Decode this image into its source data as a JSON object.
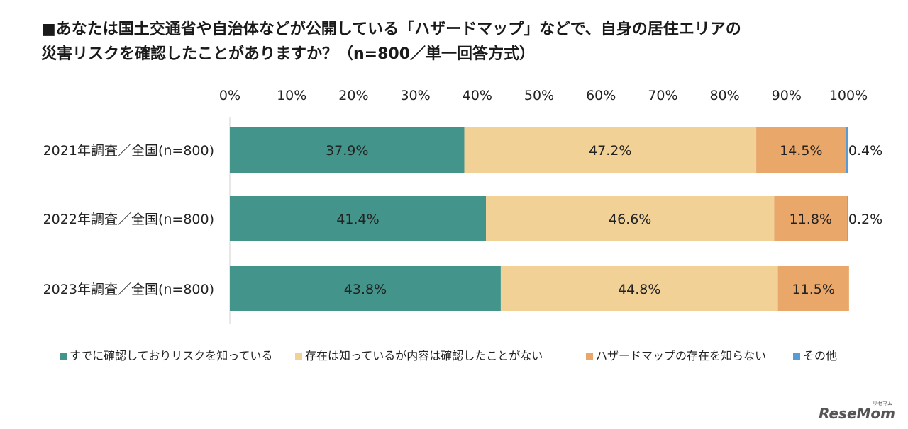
{
  "title_lines": [
    "■あなたは国土交通省や自治体などが公開している「ハザードマップ」などで、自身の居住エリアの",
    "災害リスクを確認したことがありますか？（n=800／単一回答方式）"
  ],
  "logo": {
    "text": "ReseMom",
    "ruby": "リセマム"
  },
  "colors": {
    "checked": "#43948a",
    "aware": "#f2d197",
    "unaware": "#e9a76a",
    "other": "#5b9bd5"
  },
  "chart_data": {
    "type": "bar",
    "orientation": "horizontal",
    "stacked": "percent",
    "categories": [
      "2021年調査／全国(n=800)",
      "2022年調査／全国(n=800)",
      "2023年調査／全国(n=800)"
    ],
    "series": [
      {
        "name": "すでに確認しておりリスクを知っている",
        "values": [
          37.9,
          41.4,
          43.8
        ],
        "labels": [
          "37.9%",
          "41.4%",
          "43.8%"
        ]
      },
      {
        "name": "存在は知っているが内容は確認したことがない",
        "values": [
          47.2,
          46.6,
          44.8
        ],
        "labels": [
          "47.2%",
          "46.6%",
          "44.8%"
        ]
      },
      {
        "name": "ハザードマップの存在を知らない",
        "values": [
          14.5,
          11.8,
          11.5
        ],
        "labels": [
          "14.5%",
          "11.8%",
          "11.5%"
        ]
      },
      {
        "name": "その他",
        "values": [
          0.4,
          0.2,
          0
        ],
        "labels": [
          "0.4%",
          "0.2%",
          ""
        ]
      }
    ],
    "x_ticks": [
      "0%",
      "10%",
      "20%",
      "30%",
      "40%",
      "50%",
      "60%",
      "70%",
      "80%",
      "90%",
      "100%"
    ],
    "xlim": [
      0,
      100
    ],
    "legend_position": "bottom",
    "grid": false
  }
}
